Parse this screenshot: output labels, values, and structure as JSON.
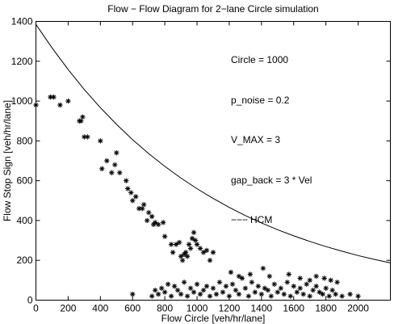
{
  "chart_data": {
    "type": "scatter",
    "title": "Flow − Flow Diagram for 2−lane Circle simulation",
    "xlabel": "Flow Circle [veh/hr/lane]",
    "ylabel": "Flow Stop Sign [veh/hr/lane]",
    "xlim": [
      0,
      2200
    ],
    "ylim": [
      0,
      1400
    ],
    "xticks": [
      0,
      200,
      400,
      600,
      800,
      1000,
      1200,
      1400,
      1600,
      1800,
      2000
    ],
    "yticks": [
      0,
      200,
      400,
      600,
      800,
      1000,
      1200,
      1400
    ],
    "grid": false,
    "annotations": [
      "Circle  = 1000",
      "p_noise = 0.2",
      "V_MAX   = 3",
      "gap_back = 3 * Vel",
      "HCM"
    ],
    "hcm_line_sample": "−−−",
    "series": [
      {
        "name": "HCM",
        "style": "line",
        "x": [
          0,
          100,
          200,
          300,
          400,
          500,
          600,
          700,
          800,
          900,
          1000,
          1100,
          1200,
          1300,
          1400,
          1500,
          1600,
          1700,
          1800,
          1900,
          2000,
          2100,
          2200
        ],
        "y": [
          1385,
          1267,
          1158,
          1058,
          967,
          883,
          806,
          736,
          672,
          613,
          560,
          511,
          466,
          425,
          388,
          354,
          323,
          295,
          269,
          246,
          224,
          205,
          187
        ]
      },
      {
        "style": "markers",
        "marker": "asterisk",
        "x": [
          0,
          90,
          110,
          150,
          200,
          270,
          280,
          290,
          300,
          320,
          400,
          410,
          440,
          470,
          490,
          500,
          520,
          560,
          570,
          590,
          600,
          620,
          640,
          660,
          670,
          690,
          700,
          720,
          730,
          740,
          760,
          790,
          800,
          840,
          850,
          870,
          890,
          900,
          910,
          920,
          930,
          940,
          950,
          960,
          970,
          980,
          990,
          1000,
          1020,
          1040,
          1060,
          1080,
          1100,
          600,
          720,
          740,
          760,
          780,
          800,
          820,
          840,
          860,
          880,
          900,
          920,
          940,
          960,
          980,
          1000,
          1020,
          1040,
          1060,
          1080,
          1100,
          1120,
          1140,
          1160,
          1180,
          1200,
          1220,
          1240,
          1260,
          1280,
          1300,
          1320,
          1340,
          1360,
          1380,
          1400,
          1420,
          1440,
          1460,
          1480,
          1500,
          1520,
          1540,
          1560,
          1580,
          1600,
          1620,
          1640,
          1660,
          1680,
          1700,
          1720,
          1740,
          1760,
          1780,
          1800,
          1820,
          1840,
          1860,
          1900,
          1950,
          2000,
          1210,
          1260,
          1330,
          1410,
          1450,
          1570,
          1640,
          1700,
          1740,
          1790,
          1830,
          1870
        ],
        "y": [
          980,
          1020,
          1020,
          980,
          1000,
          900,
          900,
          920,
          820,
          820,
          800,
          660,
          700,
          640,
          680,
          740,
          640,
          600,
          560,
          540,
          500,
          520,
          460,
          460,
          480,
          400,
          440,
          420,
          380,
          390,
          380,
          390,
          320,
          280,
          240,
          280,
          290,
          220,
          200,
          230,
          240,
          220,
          280,
          260,
          310,
          340,
          300,
          280,
          260,
          240,
          250,
          200,
          240,
          30,
          20,
          50,
          30,
          60,
          40,
          80,
          20,
          70,
          50,
          30,
          90,
          20,
          60,
          40,
          80,
          30,
          50,
          70,
          20,
          60,
          30,
          90,
          40,
          70,
          20,
          80,
          50,
          30,
          110,
          60,
          20,
          90,
          40,
          70,
          30,
          60,
          50,
          20,
          80,
          40,
          60,
          30,
          90,
          20,
          70,
          40,
          60,
          30,
          80,
          20,
          50,
          70,
          40,
          30,
          60,
          20,
          50,
          30,
          20,
          30,
          20,
          140,
          120,
          130,
          160,
          120,
          130,
          110,
          100,
          120,
          110,
          100,
          90
        ]
      }
    ]
  }
}
